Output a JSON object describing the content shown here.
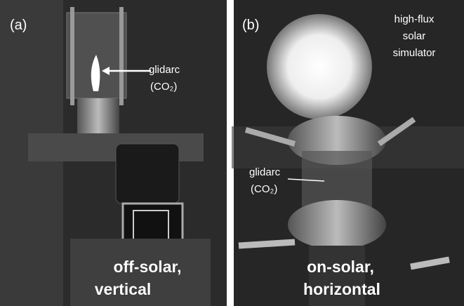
{
  "panels": [
    {
      "label": "(a)",
      "annotation": [
        "glidarc",
        "(CO₂)"
      ],
      "caption": [
        "off-solar,",
        "vertical"
      ]
    },
    {
      "label": "(b)",
      "source": [
        "high-flux",
        "solar",
        "simulator"
      ],
      "annotation": [
        "glidarc",
        "(CO₂)"
      ],
      "caption": [
        "on-solar,",
        "horizontal"
      ]
    }
  ]
}
